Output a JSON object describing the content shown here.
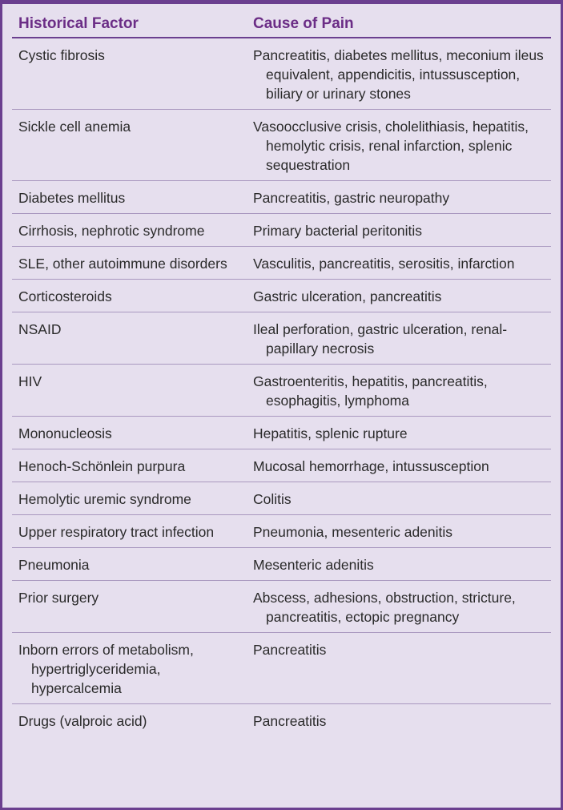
{
  "headers": {
    "col1": "Historical Factor",
    "col2": "Cause of Pain"
  },
  "rows": [
    {
      "factor": "Cystic fibrosis",
      "cause": "Pancreatitis, diabetes mellitus, meconium ileus equivalent, appendicitis, intussusception, biliary or urinary stones"
    },
    {
      "factor": "Sickle cell anemia",
      "cause": "Vasoocclusive crisis, cholelithiasis, hepatitis, hemolytic crisis, renal infarction, splenic sequestration"
    },
    {
      "factor": "Diabetes mellitus",
      "cause": "Pancreatitis, gastric neuropathy"
    },
    {
      "factor": "Cirrhosis, nephrotic syndrome",
      "cause": "Primary bacterial peritonitis"
    },
    {
      "factor": "SLE, other autoimmune disorders",
      "cause": "Vasculitis, pancreatitis, serositis, infarction"
    },
    {
      "factor": "Corticosteroids",
      "cause": "Gastric ulceration, pancreatitis"
    },
    {
      "factor": "NSAID",
      "cause": "Ileal perforation, gastric ulceration, renal-papillary necrosis"
    },
    {
      "factor": "HIV",
      "cause": "Gastroenteritis, hepatitis, pancreatitis, esophagitis, lymphoma"
    },
    {
      "factor": "Mononucleosis",
      "cause": "Hepatitis, splenic rupture"
    },
    {
      "factor": "Henoch-Schönlein purpura",
      "cause": "Mucosal hemorrhage, intussusception"
    },
    {
      "factor": "Hemolytic uremic syndrome",
      "cause": "Colitis"
    },
    {
      "factor": "Upper respiratory tract infection",
      "cause": "Pneumonia, mesenteric adenitis"
    },
    {
      "factor": "Pneumonia",
      "cause": "Mesenteric adenitis"
    },
    {
      "factor": "Prior surgery",
      "cause": "Abscess, adhesions, obstruction, stricture, pancreatitis, ectopic pregnancy"
    },
    {
      "factor": "Inborn errors of metabolism, hypertriglyceridemia, hypercalcemia",
      "cause": "Pancreatitis"
    },
    {
      "factor": "Drugs (valproic acid)",
      "cause": "Pancreatitis"
    }
  ]
}
